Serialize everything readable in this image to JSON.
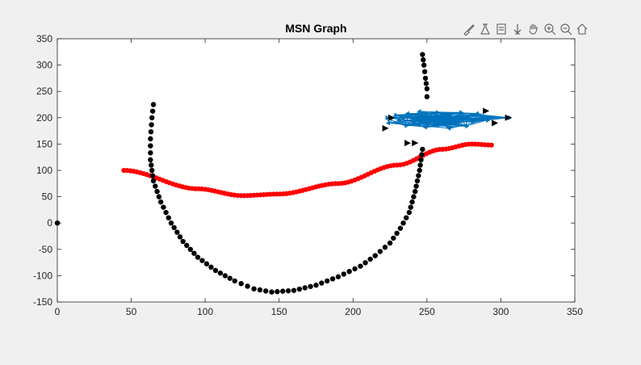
{
  "window": {
    "background": "#f0f0f0"
  },
  "toolbar": {
    "icons": [
      "brush-icon",
      "data-tips-icon",
      "linked-plot-icon",
      "datacursor-icon",
      "pan-hand-icon",
      "zoom-in-icon",
      "zoom-out-icon",
      "home-icon"
    ]
  },
  "chart_data": {
    "type": "scatter",
    "title": "MSN Graph",
    "xlabel": "",
    "ylabel": "",
    "xlim": [
      0,
      350
    ],
    "ylim": [
      -150,
      350
    ],
    "xticks": [
      0,
      50,
      100,
      150,
      200,
      250,
      300,
      350
    ],
    "yticks": [
      -150,
      -100,
      -50,
      0,
      50,
      100,
      150,
      200,
      250,
      300,
      350
    ],
    "grid": false,
    "legend": "none",
    "colors": {
      "red": "#ff0000",
      "black": "#000000",
      "blue": "#0072bd",
      "axes": "#262626"
    },
    "series": [
      {
        "color": "#ff0000",
        "marker": "filled-circle",
        "curve": "sinusoid",
        "x_range": [
          45,
          295
        ],
        "y_at_x": [
          [
            45,
            100
          ],
          [
            95,
            65
          ],
          [
            125,
            52
          ],
          [
            150,
            55
          ],
          [
            190,
            75
          ],
          [
            230,
            110
          ],
          [
            260,
            140
          ],
          [
            280,
            150
          ],
          [
            295,
            148
          ]
        ]
      },
      {
        "color": "#000000",
        "marker": "filled-circle",
        "path": [
          [
            65,
            225
          ],
          [
            64,
            200
          ],
          [
            63,
            160
          ],
          [
            63,
            120
          ],
          [
            65,
            80
          ],
          [
            70,
            40
          ],
          [
            77,
            0
          ],
          [
            85,
            -35
          ],
          [
            95,
            -65
          ],
          [
            107,
            -90
          ],
          [
            120,
            -110
          ],
          [
            133,
            -125
          ],
          [
            145,
            -131
          ],
          [
            160,
            -128
          ],
          [
            175,
            -118
          ],
          [
            190,
            -102
          ],
          [
            205,
            -82
          ],
          [
            215,
            -62
          ],
          [
            225,
            -38
          ],
          [
            232,
            -10
          ],
          [
            238,
            20
          ],
          [
            242,
            60
          ],
          [
            245,
            100
          ],
          [
            247,
            140
          ]
        ]
      },
      {
        "color": "#000000",
        "marker": "filled-circle",
        "path": [
          [
            247,
            320
          ],
          [
            248,
            300
          ],
          [
            249,
            275
          ],
          [
            250,
            255
          ],
          [
            250,
            240
          ]
        ]
      },
      {
        "color": "#000000",
        "marker": "filled-circle",
        "points": [
          [
            0,
            0
          ]
        ]
      },
      {
        "color": "#0072bd",
        "marker": "arrow-triangle",
        "style": "quiver-network",
        "center": [
          255,
          195
        ],
        "points": [
          [
            222,
            200
          ],
          [
            225,
            190
          ],
          [
            228,
            205
          ],
          [
            232,
            195
          ],
          [
            235,
            185
          ],
          [
            238,
            208
          ],
          [
            240,
            198
          ],
          [
            242,
            188
          ],
          [
            244,
            202
          ],
          [
            246,
            212
          ],
          [
            248,
            194
          ],
          [
            250,
            182
          ],
          [
            252,
            203
          ],
          [
            254,
            196
          ],
          [
            256,
            210
          ],
          [
            258,
            186
          ],
          [
            260,
            200
          ],
          [
            262,
            192
          ],
          [
            264,
            206
          ],
          [
            266,
            180
          ],
          [
            268,
            198
          ],
          [
            270,
            188
          ],
          [
            272,
            210
          ],
          [
            274,
            196
          ],
          [
            276,
            184
          ],
          [
            278,
            202
          ],
          [
            280,
            192
          ],
          [
            285,
            208
          ],
          [
            290,
            195
          ],
          [
            295,
            200
          ],
          [
            305,
            200
          ]
        ]
      },
      {
        "color": "#000000",
        "marker": "filled-triangle-right",
        "points": [
          [
            237,
            152
          ],
          [
            242,
            152
          ],
          [
            222,
            180
          ],
          [
            226,
            200
          ],
          [
            290,
            213
          ],
          [
            296,
            190
          ],
          [
            305,
            200
          ]
        ]
      }
    ]
  }
}
